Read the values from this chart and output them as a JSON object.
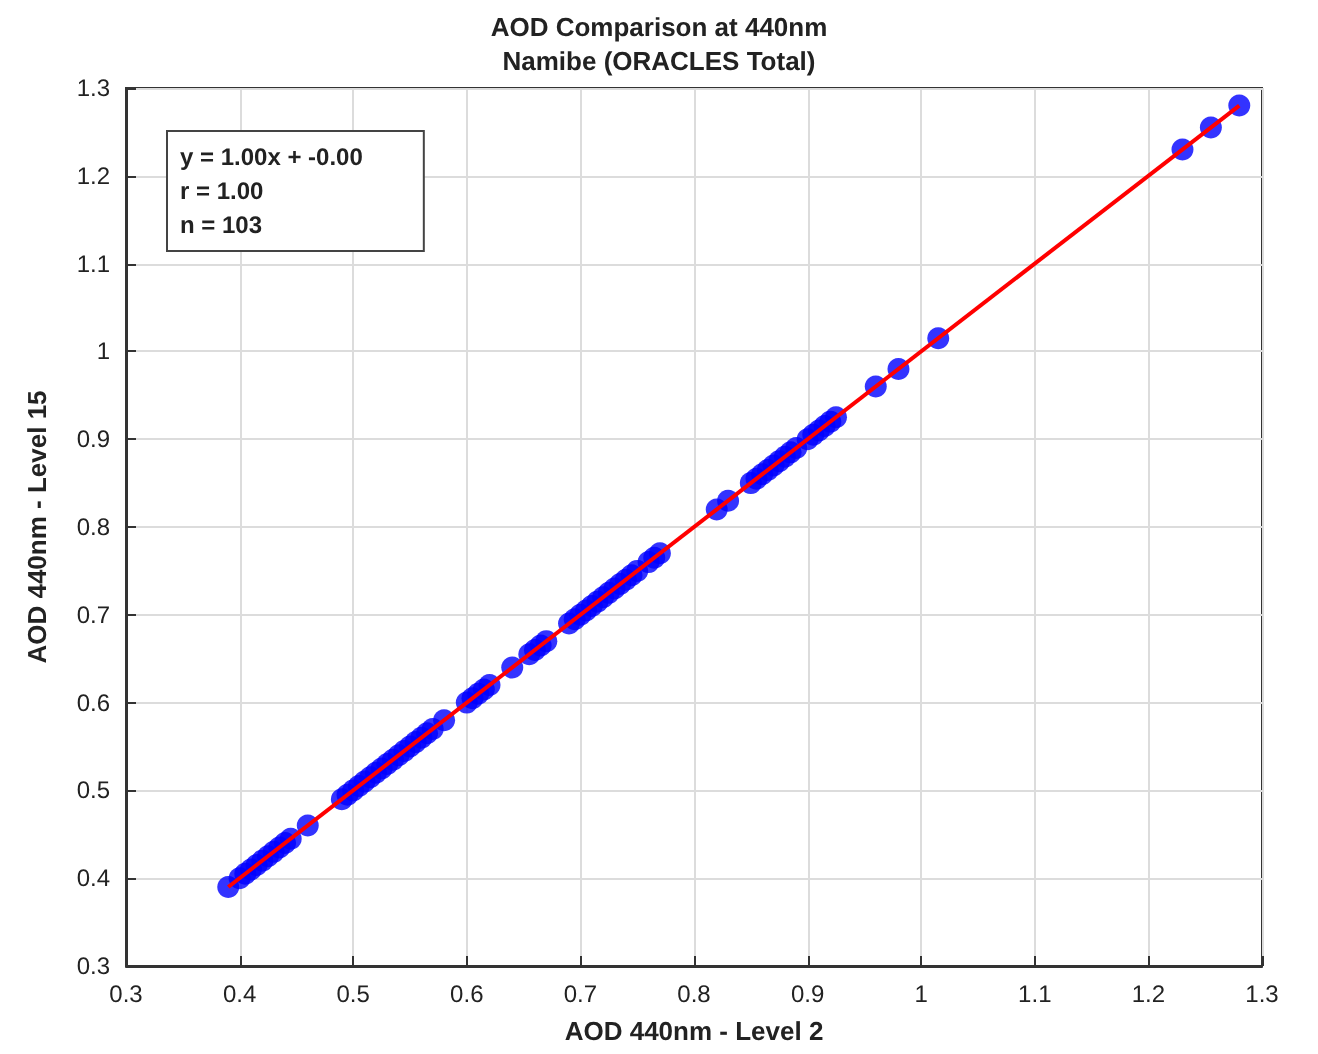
{
  "chart_data": {
    "type": "scatter",
    "title": "AOD Comparison at 440nm",
    "subtitle": "Namibe (ORACLES Total)",
    "xlabel": "AOD 440nm - Level 2",
    "ylabel": "AOD 440nm - Level 15",
    "xlim": [
      0.3,
      1.3
    ],
    "ylim": [
      0.3,
      1.3
    ],
    "xticks": [
      0.3,
      0.4,
      0.5,
      0.6,
      0.7,
      0.8,
      0.9,
      1,
      1.1,
      1.2,
      1.3
    ],
    "yticks": [
      0.3,
      0.4,
      0.5,
      0.6,
      0.7,
      0.8,
      0.9,
      1,
      1.1,
      1.2,
      1.3
    ],
    "grid": true,
    "marker": "circle",
    "series": [
      {
        "type": "scatter",
        "color": "#0000ff",
        "x": [
          0.39,
          0.4,
          0.405,
          0.41,
          0.415,
          0.42,
          0.425,
          0.43,
          0.435,
          0.44,
          0.445,
          0.46,
          0.49,
          0.495,
          0.5,
          0.505,
          0.51,
          0.515,
          0.52,
          0.525,
          0.53,
          0.535,
          0.54,
          0.545,
          0.55,
          0.555,
          0.56,
          0.565,
          0.57,
          0.58,
          0.6,
          0.605,
          0.61,
          0.615,
          0.62,
          0.64,
          0.655,
          0.66,
          0.665,
          0.67,
          0.69,
          0.695,
          0.7,
          0.705,
          0.71,
          0.715,
          0.72,
          0.725,
          0.73,
          0.735,
          0.74,
          0.745,
          0.75,
          0.76,
          0.765,
          0.77,
          0.82,
          0.83,
          0.85,
          0.855,
          0.86,
          0.865,
          0.87,
          0.875,
          0.88,
          0.885,
          0.89,
          0.9,
          0.905,
          0.91,
          0.915,
          0.92,
          0.925,
          0.96,
          0.98,
          1.015,
          1.23,
          1.255,
          1.28
        ],
        "values": [
          0.39,
          0.4,
          0.405,
          0.41,
          0.415,
          0.42,
          0.425,
          0.43,
          0.435,
          0.44,
          0.445,
          0.46,
          0.49,
          0.495,
          0.5,
          0.505,
          0.51,
          0.515,
          0.52,
          0.525,
          0.53,
          0.535,
          0.54,
          0.545,
          0.55,
          0.555,
          0.56,
          0.565,
          0.57,
          0.58,
          0.6,
          0.605,
          0.61,
          0.615,
          0.62,
          0.64,
          0.655,
          0.66,
          0.665,
          0.67,
          0.69,
          0.695,
          0.7,
          0.705,
          0.71,
          0.715,
          0.72,
          0.725,
          0.73,
          0.735,
          0.74,
          0.745,
          0.75,
          0.76,
          0.765,
          0.77,
          0.82,
          0.83,
          0.85,
          0.855,
          0.86,
          0.865,
          0.87,
          0.875,
          0.88,
          0.885,
          0.89,
          0.9,
          0.905,
          0.91,
          0.915,
          0.92,
          0.925,
          0.96,
          0.98,
          1.015,
          1.23,
          1.255,
          1.28
        ]
      },
      {
        "type": "line",
        "color": "#ff0000",
        "x": [
          0.39,
          1.28
        ],
        "values": [
          0.39,
          1.28
        ],
        "marker": "none",
        "line_style": "solid"
      }
    ],
    "annotations": [
      "y = 1.00x + -0.00",
      "r = 1.00",
      "n = 103"
    ]
  }
}
